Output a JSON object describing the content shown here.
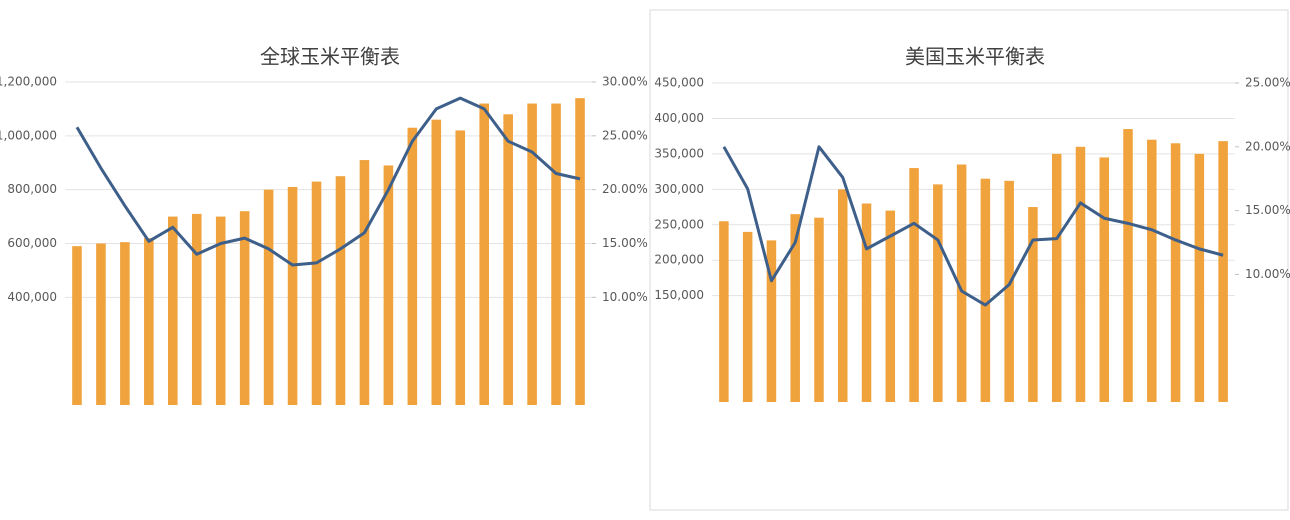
{
  "chart_data": [
    {
      "type": "bar-line",
      "title": "全球玉米平衡表",
      "series": [
        {
          "type": "bar",
          "color": "#f0a23c",
          "values": [
            590000,
            600000,
            605000,
            620000,
            700000,
            710000,
            700000,
            720000,
            800000,
            810000,
            830000,
            850000,
            910000,
            890000,
            1030000,
            1060000,
            1020000,
            1120000,
            1080000,
            1120000,
            1120000,
            1140000
          ]
        },
        {
          "type": "line",
          "axis": "y2",
          "color": "#3d5f8a",
          "values": [
            25.8,
            22,
            18.5,
            15.2,
            16.5,
            14,
            15,
            15.5,
            14.5,
            13,
            13.2,
            14.5,
            16,
            20,
            24.5,
            27.5,
            28.5,
            27.5,
            24.5,
            23.5,
            21.5,
            21
          ]
        }
      ],
      "ylim": [
        0,
        1200000
      ],
      "yticks": [
        {
          "value": 400000,
          "label": "400,000"
        },
        {
          "value": 600000,
          "label": "600,000"
        },
        {
          "value": 800000,
          "label": "800,000"
        },
        {
          "value": 1000000,
          "label": "1,000,000"
        },
        {
          "value": 1200000,
          "label": "1,200,000"
        }
      ],
      "y2lim": [
        0,
        30
      ],
      "y2ticks": [
        {
          "value": 10,
          "label": "10.00%"
        },
        {
          "value": 15,
          "label": "15.00%"
        },
        {
          "value": 20,
          "label": "20.00%"
        },
        {
          "value": 25,
          "label": "25.00%"
        },
        {
          "value": 30,
          "label": "30.00%"
        }
      ],
      "grid": true
    },
    {
      "type": "bar-line",
      "title": "美国玉米平衡表",
      "series": [
        {
          "type": "bar",
          "color": "#f0a23c",
          "values": [
            255000,
            240000,
            228000,
            265000,
            260000,
            300000,
            280000,
            270000,
            330000,
            307000,
            335000,
            315000,
            312000,
            275000,
            350000,
            360000,
            345000,
            385000,
            370000,
            365000,
            350000,
            368000
          ]
        },
        {
          "type": "line",
          "axis": "y2",
          "color": "#3d5f8a",
          "values": [
            20,
            16.7,
            9.5,
            12.5,
            20,
            17.6,
            12,
            13,
            14,
            12.7,
            8.7,
            7.6,
            9.2,
            12.7,
            12.8,
            15.6,
            14.4,
            14,
            13.5,
            12.7,
            12,
            11.5
          ]
        }
      ],
      "ylim": [
        0,
        450000
      ],
      "yticks": [
        {
          "value": 150000,
          "label": "150,000"
        },
        {
          "value": 200000,
          "label": "200,000"
        },
        {
          "value": 250000,
          "label": "250,000"
        },
        {
          "value": 300000,
          "label": "300,000"
        },
        {
          "value": 350000,
          "label": "350,000"
        },
        {
          "value": 400000,
          "label": "400,000"
        },
        {
          "value": 450000,
          "label": "450,000"
        }
      ],
      "y2lim": [
        0,
        25
      ],
      "y2ticks": [
        {
          "value": 10,
          "label": "10.00%"
        },
        {
          "value": 15,
          "label": "15.00%"
        },
        {
          "value": 20,
          "label": "20.00%"
        },
        {
          "value": 25,
          "label": "25.00%"
        }
      ],
      "grid": true
    }
  ]
}
